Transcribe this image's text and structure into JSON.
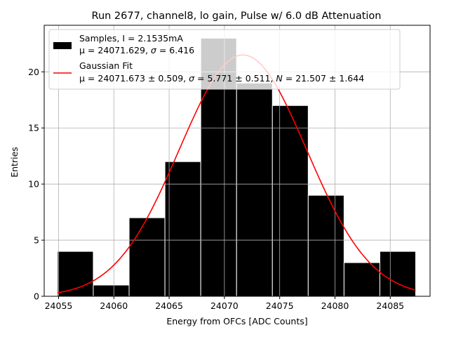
{
  "chart_data": {
    "type": "bar",
    "title": "Run 2677, channel8, lo gain, Pulse w/ 6.0 dB Attenuation",
    "xlabel": "Energy from OFCs [ADC Counts]",
    "ylabel": "Entries",
    "xlim": [
      24053.7,
      24088.6
    ],
    "ylim": [
      0,
      24.15
    ],
    "xticks": [
      24055,
      24060,
      24065,
      24070,
      24075,
      24080,
      24085
    ],
    "yticks": [
      0,
      5,
      10,
      15,
      20
    ],
    "grid": true,
    "legend_position": "top-left",
    "bin_edges": [
      24054.9,
      24058.14,
      24061.38,
      24064.62,
      24067.86,
      24071.1,
      24074.34,
      24077.58,
      24080.82,
      24084.06,
      24087.3
    ],
    "values": [
      4,
      1,
      7,
      12,
      23,
      19,
      17,
      9,
      3,
      4
    ],
    "bar_color": "#000000",
    "fit": {
      "mu": 24071.673,
      "sigma": 5.771,
      "N": 21.507,
      "color": "#ff0000"
    },
    "legend": [
      {
        "kind": "patch",
        "color": "#000000",
        "line1": "Samples, I = 2.1535mA",
        "line2_pre": "μ = 24071.629, ",
        "line2_sym": "σ",
        "line2_post": " = 6.416"
      },
      {
        "kind": "line",
        "color": "#ff0000",
        "line1": "Gaussian Fit",
        "line2_pre": "μ = 24071.673 ± 0.509, ",
        "line2_sym": "σ",
        "line2_mid": " = 5.771 ± 0.511, ",
        "line2_sym2": "N",
        "line2_post": " = 21.507 ± 1.644"
      }
    ]
  }
}
